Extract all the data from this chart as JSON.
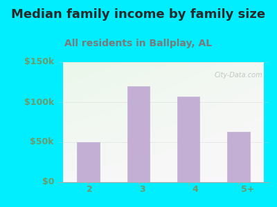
{
  "title": "Median family income by family size",
  "subtitle": "All residents in Ballplay, AL",
  "categories": [
    "2",
    "3",
    "4",
    "5+"
  ],
  "values": [
    50000,
    120000,
    107000,
    63000
  ],
  "ylim": [
    0,
    150000
  ],
  "yticks": [
    0,
    50000,
    100000,
    150000
  ],
  "ytick_labels": [
    "$0",
    "$50k",
    "$100k",
    "$150k"
  ],
  "bar_color": "#c4afd4",
  "title_color": "#2a2a2a",
  "subtitle_color": "#7a7a7a",
  "tick_color": "#7a9a7a",
  "bg_outer": "#00eeff",
  "watermark": "City-Data.com",
  "title_fontsize": 13,
  "subtitle_fontsize": 10,
  "tick_fontsize": 9
}
